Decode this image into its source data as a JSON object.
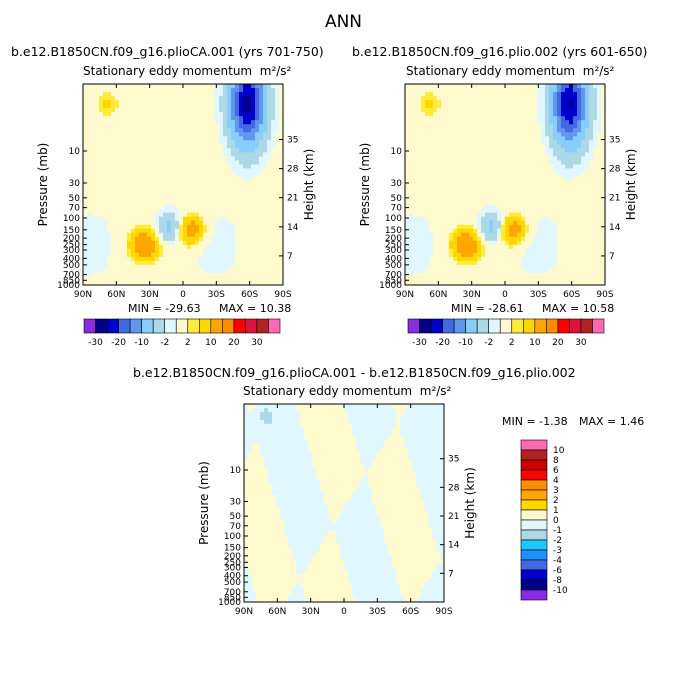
{
  "page_title": "ANN",
  "chart_data": [
    {
      "type": "heatmap",
      "title": "b.e12.B1850CN.f09_g16.plioCA.001 (yrs 701-750)",
      "subtitle": "Stationary eddy momentum",
      "units": "m²/s²",
      "xlabel": "",
      "ylabel": "Pressure (mb)",
      "y2label": "Height (km)",
      "x_ticks": [
        "90N",
        "60N",
        "30N",
        "0",
        "30S",
        "60S",
        "90S"
      ],
      "pressure_ticks": [
        "10",
        "30",
        "50",
        "70",
        "100",
        "150",
        "200",
        "250",
        "300",
        "400",
        "500",
        "700",
        "850",
        "1000"
      ],
      "height_ticks": [
        "7",
        "14",
        "21",
        "28",
        "35"
      ],
      "ylim_mb": [
        1000,
        1
      ],
      "y_log_scale": true,
      "min_label": "MIN = -29.63",
      "max_label": "MAX = 10.38",
      "min": -29.63,
      "max": 10.38,
      "features": [
        {
          "lat": 68,
          "p_mb": 2,
          "value": 3,
          "desc": "positive center upper stratosphere"
        },
        {
          "lat": -58,
          "p_mb": 2,
          "value": -26,
          "desc": "strong negative center upper stratosphere"
        },
        {
          "lat": 12,
          "p_mb": 140,
          "value": -6,
          "desc": "negative center"
        },
        {
          "lat": -7,
          "p_mb": 150,
          "value": 8,
          "desc": "positive center"
        },
        {
          "lat": 35,
          "p_mb": 250,
          "value": 9,
          "desc": "positive center"
        }
      ],
      "legend": "colorbar-bottom"
    },
    {
      "type": "heatmap",
      "title": "b.e12.B1850CN.f09_g16.plio.002 (yrs 601-650)",
      "subtitle": "Stationary eddy momentum",
      "units": "m²/s²",
      "xlabel": "",
      "ylabel": "Pressure (mb)",
      "y2label": "Height (km)",
      "x_ticks": [
        "90N",
        "60N",
        "30N",
        "0",
        "30S",
        "60S",
        "90S"
      ],
      "pressure_ticks": [
        "10",
        "30",
        "50",
        "70",
        "100",
        "150",
        "200",
        "250",
        "300",
        "400",
        "500",
        "700",
        "850",
        "1000"
      ],
      "height_ticks": [
        "7",
        "14",
        "21",
        "28",
        "35"
      ],
      "ylim_mb": [
        1000,
        1
      ],
      "y_log_scale": true,
      "min_label": "MIN = -28.61",
      "max_label": "MAX = 10.58",
      "min": -28.61,
      "max": 10.58,
      "features": [
        {
          "lat": 68,
          "p_mb": 2,
          "value": 3,
          "desc": "positive center upper stratosphere"
        },
        {
          "lat": -58,
          "p_mb": 2,
          "value": -25,
          "desc": "strong negative center upper stratosphere"
        },
        {
          "lat": 12,
          "p_mb": 140,
          "value": -6,
          "desc": "negative center"
        },
        {
          "lat": -7,
          "p_mb": 150,
          "value": 8,
          "desc": "positive center"
        },
        {
          "lat": 35,
          "p_mb": 250,
          "value": 9,
          "desc": "positive center"
        }
      ],
      "legend": "colorbar-bottom"
    },
    {
      "type": "heatmap",
      "title": "b.e12.B1850CN.f09_g16.plioCA.001 - b.e12.B1850CN.f09_g16.plio.002",
      "subtitle": "Stationary eddy momentum",
      "units": "m²/s²",
      "xlabel": "",
      "ylabel": "Pressure (mb)",
      "y2label": "Height (km)",
      "x_ticks": [
        "90N",
        "60N",
        "30N",
        "0",
        "30S",
        "60S",
        "90S"
      ],
      "pressure_ticks": [
        "10",
        "30",
        "50",
        "70",
        "100",
        "150",
        "200",
        "250",
        "300",
        "400",
        "500",
        "700",
        "850",
        "1000"
      ],
      "height_ticks": [
        "7",
        "14",
        "21",
        "28",
        "35"
      ],
      "ylim_mb": [
        1000,
        1
      ],
      "y_log_scale": true,
      "min_label": "MIN = -1.38",
      "max_label": "MAX = 1.46",
      "min": -1.38,
      "max": 1.46,
      "features": [
        {
          "lat": 70,
          "p_mb": 1.5,
          "value": -1.5,
          "desc": "weak negative patch"
        }
      ],
      "legend": "colorbar-right"
    }
  ],
  "colorbars": {
    "full": {
      "labels": [
        "-30",
        "-20",
        "-10",
        "-2",
        "2",
        "10",
        "20",
        "30"
      ],
      "colors": [
        "#8a2be2",
        "#00008b",
        "#0000cd",
        "#4169e1",
        "#6495ed",
        "#87cefa",
        "#add8e6",
        "#e0f7ff",
        "#fffacd",
        "#ffeb3b",
        "#ffd700",
        "#ffa500",
        "#ff8c00",
        "#ff0000",
        "#dc143c",
        "#b22222",
        "#ff69b4"
      ]
    },
    "diff": {
      "labels": [
        "10",
        "8",
        "6",
        "4",
        "3",
        "2",
        "1",
        "0",
        "-1",
        "-2",
        "-3",
        "-4",
        "-6",
        "-8",
        "-10"
      ],
      "colors": [
        "#ff69b4",
        "#b22222",
        "#cc0000",
        "#ff0000",
        "#ff8c00",
        "#ffa500",
        "#ffd700",
        "#fffacd",
        "#e0f7ff",
        "#add8e6",
        "#1ec8ff",
        "#1e90ff",
        "#4169e1",
        "#0000cd",
        "#00008b",
        "#8a2be2"
      ]
    }
  }
}
